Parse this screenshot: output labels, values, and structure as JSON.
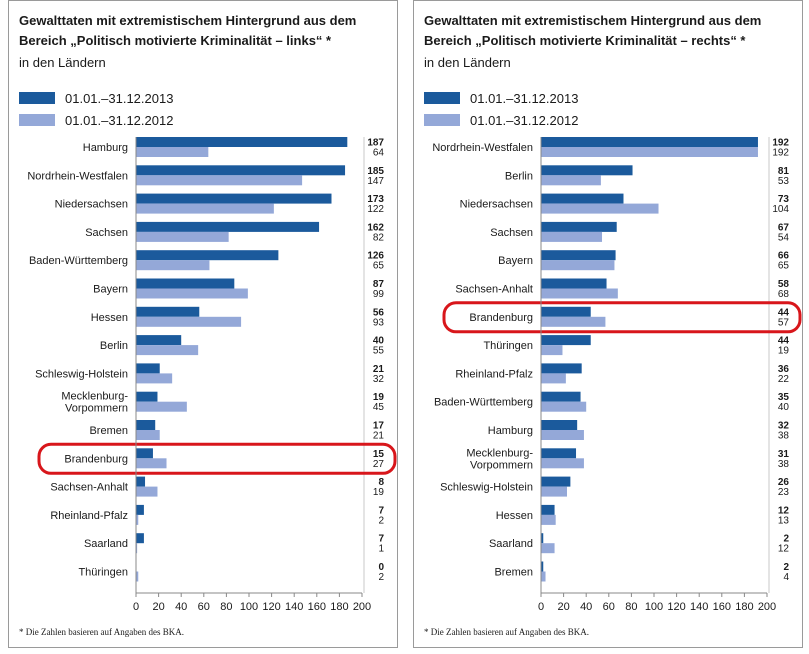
{
  "colors": {
    "series_2013": "#1b5a9c",
    "series_2012": "#94a8d8",
    "highlight": "#d8161b"
  },
  "chart_data": [
    {
      "type": "bar",
      "title": "Gewalttaten mit extremistischem Hintergrund aus dem Bereich „Politisch motivierte Kriminalität – links“ *",
      "subtitle": "in den Ländern",
      "categories": [
        "Hamburg",
        "Nordrhein-Westfalen",
        "Niedersachsen",
        "Sachsen",
        "Baden-Württemberg",
        "Bayern",
        "Hessen",
        "Berlin",
        "Schleswig-Holstein",
        "Mecklenburg-Vorpommern",
        "Bremen",
        "Brandenburg",
        "Sachsen-Anhalt",
        "Rheinland-Pfalz",
        "Saarland",
        "Thüringen"
      ],
      "series": [
        {
          "name": "01.01.–31.12.2013",
          "values": [
            187,
            185,
            173,
            162,
            126,
            87,
            56,
            40,
            21,
            19,
            17,
            15,
            8,
            7,
            7,
            0
          ]
        },
        {
          "name": "01.01.–31.12.2012",
          "values": [
            64,
            147,
            122,
            82,
            65,
            99,
            93,
            55,
            32,
            45,
            21,
            27,
            19,
            2,
            1,
            2
          ]
        }
      ],
      "highlighted": "Brandenburg",
      "xlim": [
        0,
        200
      ],
      "xticks": [
        "0",
        "20",
        "40",
        "60",
        "80",
        "100",
        "120",
        "140",
        "160",
        "180",
        "200"
      ],
      "legend": "top-left",
      "footnote": "* Die Zahlen basieren auf Angaben des BKA."
    },
    {
      "type": "bar",
      "title": "Gewalttaten mit extremistischem Hintergrund aus dem Bereich „Politisch motivierte Kriminalität – rechts“ *",
      "subtitle": "in den Ländern",
      "categories": [
        "Nordrhein-Westfalen",
        "Berlin",
        "Niedersachsen",
        "Sachsen",
        "Bayern",
        "Sachsen-Anhalt",
        "Brandenburg",
        "Thüringen",
        "Rheinland-Pfalz",
        "Baden-Württemberg",
        "Hamburg",
        "Mecklenburg-Vorpommern",
        "Schleswig-Holstein",
        "Hessen",
        "Saarland",
        "Bremen"
      ],
      "series": [
        {
          "name": "01.01.–31.12.2013",
          "values": [
            192,
            81,
            73,
            67,
            66,
            58,
            44,
            44,
            36,
            35,
            32,
            31,
            26,
            12,
            2,
            2
          ]
        },
        {
          "name": "01.01.–31.12.2012",
          "values": [
            192,
            53,
            104,
            54,
            65,
            68,
            57,
            19,
            22,
            40,
            38,
            38,
            23,
            13,
            12,
            4
          ]
        }
      ],
      "highlighted": "Brandenburg",
      "xlim": [
        0,
        200
      ],
      "xticks": [
        "0",
        "20",
        "40",
        "60",
        "80",
        "100",
        "120",
        "140",
        "160",
        "180",
        "200"
      ],
      "legend": "top-left",
      "footnote": "* Die Zahlen basieren auf Angaben des BKA."
    }
  ]
}
